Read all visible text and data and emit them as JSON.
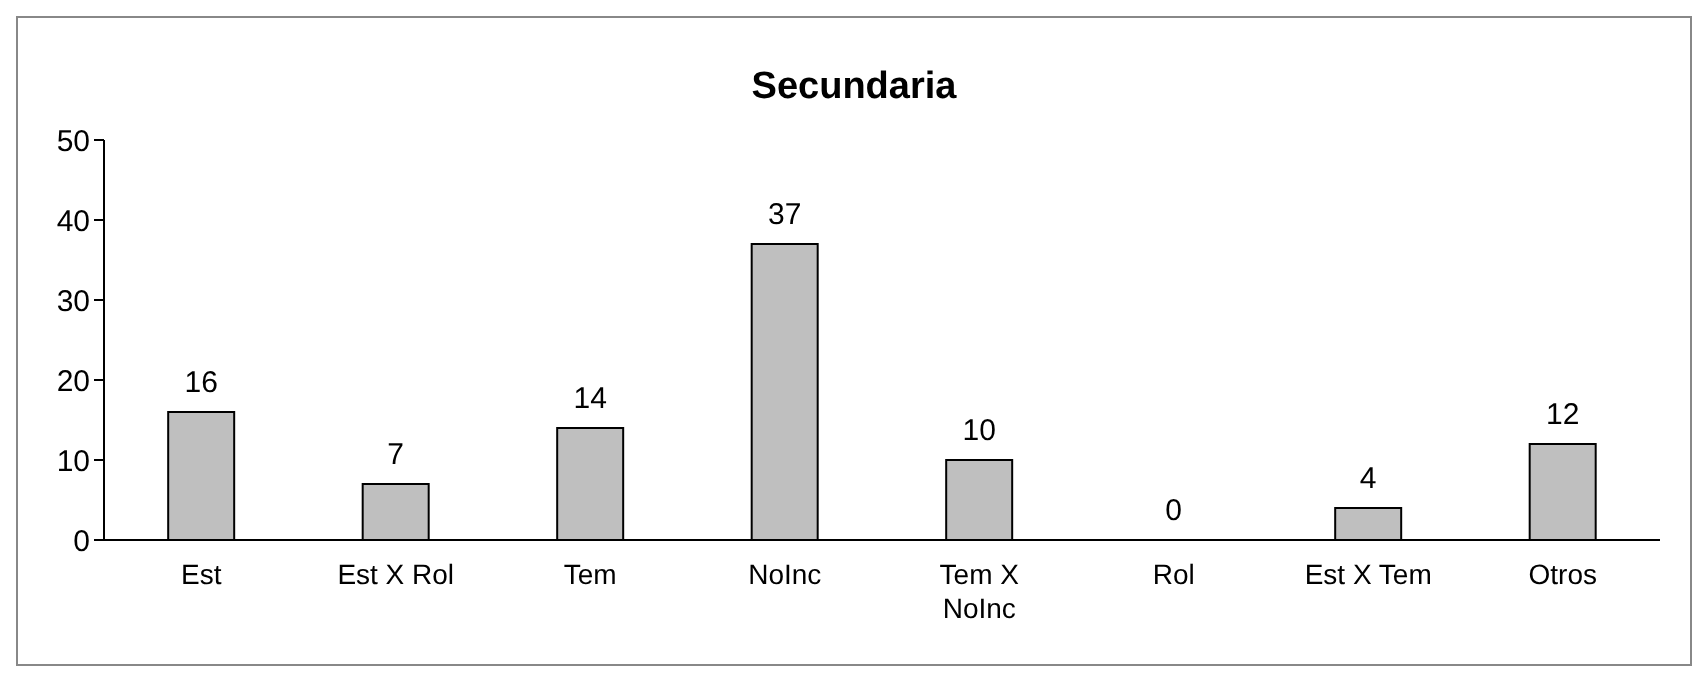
{
  "chart_data": {
    "type": "bar",
    "title": "Secundaria",
    "categories": [
      "Est",
      "Est X Rol",
      "Tem",
      "NoInc",
      "Tem X NoInc",
      "Rol",
      "Est X Tem",
      "Otros"
    ],
    "values": [
      16,
      7,
      14,
      37,
      10,
      0,
      4,
      12
    ],
    "color": "#bfbfbf",
    "ylim": [
      0,
      50
    ],
    "yticks": [
      0,
      10,
      20,
      30,
      40,
      50
    ],
    "data_labels": true
  }
}
